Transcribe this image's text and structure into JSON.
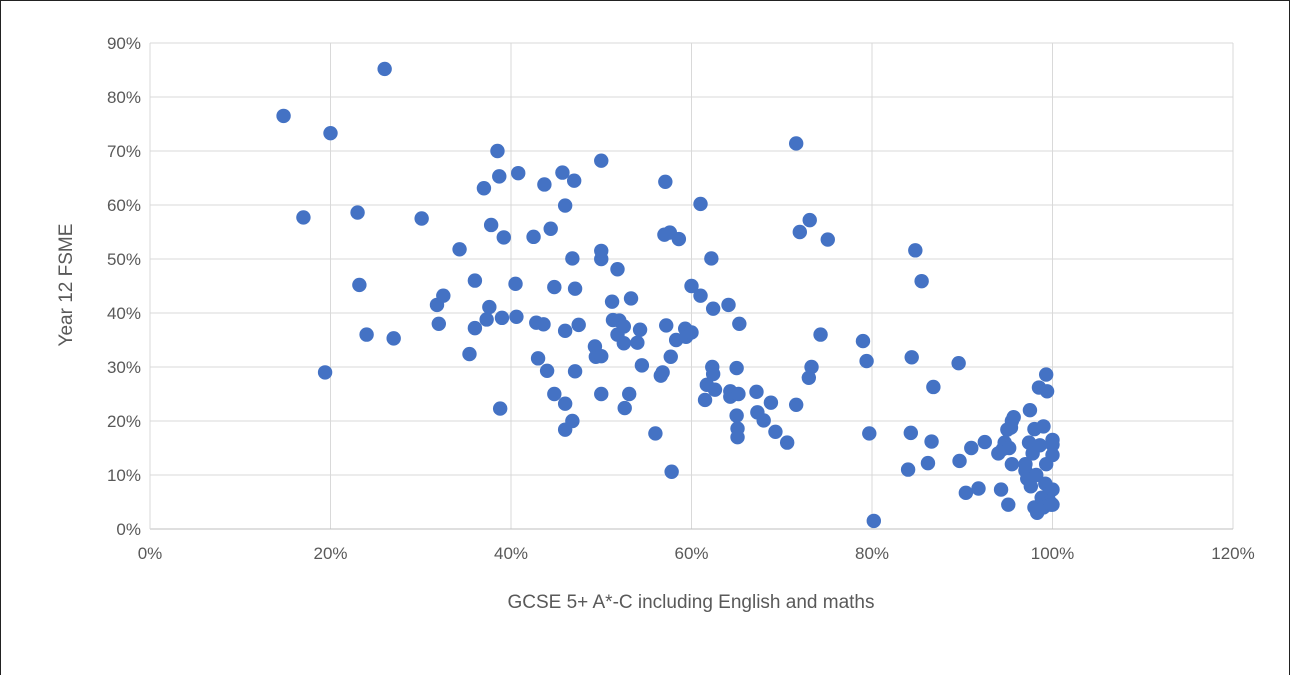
{
  "colors": {
    "point": "#4472C4",
    "grid": "#d9d9d9",
    "axis_text": "#595959"
  },
  "chart_data": {
    "type": "scatter",
    "title": "",
    "xlabel": "GCSE 5+ A*-C including English and maths",
    "ylabel": "Year 12 FSME",
    "xlim": [
      0,
      1.2
    ],
    "ylim": [
      0,
      0.9
    ],
    "xticks": [
      0,
      0.2,
      0.4,
      0.6,
      0.8,
      1.0,
      1.2
    ],
    "yticks": [
      0,
      0.1,
      0.2,
      0.3,
      0.4,
      0.5,
      0.6,
      0.7,
      0.8,
      0.9
    ],
    "xtick_labels": [
      "0%",
      "20%",
      "40%",
      "60%",
      "80%",
      "100%",
      "120%"
    ],
    "ytick_labels": [
      "0%",
      "10%",
      "20%",
      "30%",
      "40%",
      "50%",
      "60%",
      "70%",
      "80%",
      "90%"
    ],
    "grid": true,
    "legend": "none",
    "series": [
      {
        "points": [
          [
            0.148,
            0.765
          ],
          [
            0.17,
            0.577
          ],
          [
            0.194,
            0.29
          ],
          [
            0.2,
            0.733
          ],
          [
            0.23,
            0.586
          ],
          [
            0.232,
            0.452
          ],
          [
            0.24,
            0.36
          ],
          [
            0.26,
            0.852
          ],
          [
            0.27,
            0.353
          ],
          [
            0.301,
            0.575
          ],
          [
            0.318,
            0.415
          ],
          [
            0.32,
            0.38
          ],
          [
            0.325,
            0.432
          ],
          [
            0.343,
            0.518
          ],
          [
            0.354,
            0.324
          ],
          [
            0.36,
            0.372
          ],
          [
            0.36,
            0.46
          ],
          [
            0.37,
            0.631
          ],
          [
            0.373,
            0.388
          ],
          [
            0.376,
            0.411
          ],
          [
            0.378,
            0.563
          ],
          [
            0.385,
            0.7
          ],
          [
            0.387,
            0.653
          ],
          [
            0.388,
            0.223
          ],
          [
            0.39,
            0.391
          ],
          [
            0.392,
            0.54
          ],
          [
            0.405,
            0.454
          ],
          [
            0.406,
            0.393
          ],
          [
            0.408,
            0.659
          ],
          [
            0.425,
            0.541
          ],
          [
            0.428,
            0.382
          ],
          [
            0.43,
            0.316
          ],
          [
            0.436,
            0.379
          ],
          [
            0.437,
            0.638
          ],
          [
            0.44,
            0.293
          ],
          [
            0.444,
            0.556
          ],
          [
            0.448,
            0.448
          ],
          [
            0.448,
            0.25
          ],
          [
            0.457,
            0.66
          ],
          [
            0.46,
            0.599
          ],
          [
            0.46,
            0.367
          ],
          [
            0.46,
            0.184
          ],
          [
            0.46,
            0.232
          ],
          [
            0.468,
            0.2
          ],
          [
            0.468,
            0.501
          ],
          [
            0.47,
            0.645
          ],
          [
            0.471,
            0.445
          ],
          [
            0.471,
            0.292
          ],
          [
            0.475,
            0.378
          ],
          [
            0.493,
            0.338
          ],
          [
            0.494,
            0.319
          ],
          [
            0.5,
            0.515
          ],
          [
            0.5,
            0.5
          ],
          [
            0.5,
            0.25
          ],
          [
            0.5,
            0.682
          ],
          [
            0.5,
            0.32
          ],
          [
            0.512,
            0.421
          ],
          [
            0.513,
            0.387
          ],
          [
            0.518,
            0.36
          ],
          [
            0.518,
            0.481
          ],
          [
            0.52,
            0.386
          ],
          [
            0.525,
            0.375
          ],
          [
            0.525,
            0.344
          ],
          [
            0.526,
            0.224
          ],
          [
            0.531,
            0.25
          ],
          [
            0.533,
            0.427
          ],
          [
            0.54,
            0.345
          ],
          [
            0.543,
            0.369
          ],
          [
            0.545,
            0.303
          ],
          [
            0.56,
            0.177
          ],
          [
            0.566,
            0.284
          ],
          [
            0.568,
            0.29
          ],
          [
            0.57,
            0.545
          ],
          [
            0.571,
            0.643
          ],
          [
            0.572,
            0.377
          ],
          [
            0.576,
            0.549
          ],
          [
            0.577,
            0.319
          ],
          [
            0.578,
            0.106
          ],
          [
            0.583,
            0.35
          ],
          [
            0.586,
            0.537
          ],
          [
            0.593,
            0.371
          ],
          [
            0.594,
            0.356
          ],
          [
            0.6,
            0.364
          ],
          [
            0.6,
            0.45
          ],
          [
            0.61,
            0.602
          ],
          [
            0.61,
            0.432
          ],
          [
            0.615,
            0.239
          ],
          [
            0.617,
            0.267
          ],
          [
            0.622,
            0.501
          ],
          [
            0.623,
            0.3
          ],
          [
            0.624,
            0.408
          ],
          [
            0.624,
            0.287
          ],
          [
            0.626,
            0.258
          ],
          [
            0.641,
            0.415
          ],
          [
            0.643,
            0.245
          ],
          [
            0.643,
            0.255
          ],
          [
            0.65,
            0.298
          ],
          [
            0.65,
            0.21
          ],
          [
            0.651,
            0.17
          ],
          [
            0.651,
            0.186
          ],
          [
            0.652,
            0.25
          ],
          [
            0.653,
            0.38
          ],
          [
            0.672,
            0.254
          ],
          [
            0.673,
            0.216
          ],
          [
            0.68,
            0.201
          ],
          [
            0.688,
            0.234
          ],
          [
            0.693,
            0.18
          ],
          [
            0.706,
            0.16
          ],
          [
            0.716,
            0.23
          ],
          [
            0.716,
            0.714
          ],
          [
            0.72,
            0.55
          ],
          [
            0.73,
            0.28
          ],
          [
            0.731,
            0.572
          ],
          [
            0.733,
            0.3
          ],
          [
            0.743,
            0.36
          ],
          [
            0.751,
            0.536
          ],
          [
            0.79,
            0.348
          ],
          [
            0.794,
            0.311
          ],
          [
            0.797,
            0.177
          ],
          [
            0.802,
            0.015
          ],
          [
            0.84,
            0.11
          ],
          [
            0.843,
            0.178
          ],
          [
            0.844,
            0.318
          ],
          [
            0.848,
            0.516
          ],
          [
            0.855,
            0.459
          ],
          [
            0.862,
            0.122
          ],
          [
            0.866,
            0.162
          ],
          [
            0.868,
            0.263
          ],
          [
            0.896,
            0.307
          ],
          [
            0.897,
            0.126
          ],
          [
            0.904,
            0.067
          ],
          [
            0.91,
            0.15
          ],
          [
            0.918,
            0.075
          ],
          [
            0.925,
            0.161
          ],
          [
            0.94,
            0.14
          ],
          [
            0.943,
            0.073
          ],
          [
            0.945,
            0.148
          ],
          [
            0.947,
            0.16
          ],
          [
            0.95,
            0.184
          ],
          [
            0.951,
            0.045
          ],
          [
            0.952,
            0.15
          ],
          [
            0.954,
            0.188
          ],
          [
            0.955,
            0.2
          ],
          [
            0.955,
            0.12
          ],
          [
            0.957,
            0.207
          ],
          [
            0.97,
            0.12
          ],
          [
            0.97,
            0.108
          ],
          [
            0.972,
            0.093
          ],
          [
            0.974,
            0.16
          ],
          [
            0.975,
            0.22
          ],
          [
            0.976,
            0.079
          ],
          [
            0.978,
            0.14
          ],
          [
            0.98,
            0.04
          ],
          [
            0.98,
            0.185
          ],
          [
            0.982,
            0.1
          ],
          [
            0.983,
            0.03
          ],
          [
            0.985,
            0.262
          ],
          [
            0.986,
            0.155
          ],
          [
            0.988,
            0.058
          ],
          [
            0.99,
            0.19
          ],
          [
            0.99,
            0.04
          ],
          [
            0.992,
            0.084
          ],
          [
            0.993,
            0.12
          ],
          [
            0.993,
            0.286
          ],
          [
            0.994,
            0.255
          ],
          [
            0.995,
            0.062
          ],
          [
            0.997,
            0.05
          ],
          [
            0.998,
            0.045
          ],
          [
            1.0,
            0.165
          ],
          [
            1.0,
            0.156
          ],
          [
            1.0,
            0.073
          ],
          [
            1.0,
            0.137
          ],
          [
            1.0,
            0.045
          ]
        ]
      }
    ]
  }
}
